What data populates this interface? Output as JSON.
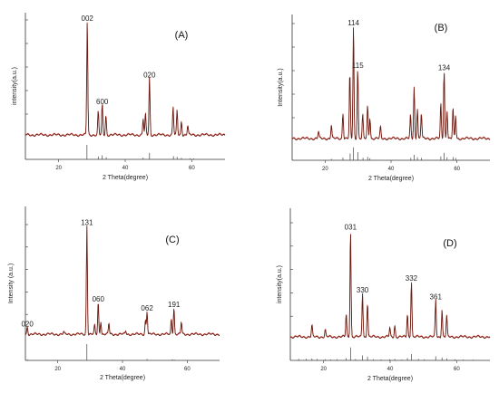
{
  "colors": {
    "observed": "#6b1a10",
    "calculated": "#e0392b",
    "reference": "#444444",
    "axis": "#333333"
  },
  "chart_data": [
    {
      "type": "line",
      "panel_label": "(A)",
      "xlabel": "2 Theta(degree)",
      "ylabel": "intensity(a.u.)",
      "xlim": [
        10,
        70
      ],
      "xticks": [
        20,
        40,
        60
      ],
      "ylim": [
        0,
        100
      ],
      "peaks": [
        {
          "x": 28.6,
          "y": 97,
          "label": "002"
        },
        {
          "x": 31.9,
          "y": 20
        },
        {
          "x": 33.1,
          "y": 26,
          "label": "600"
        },
        {
          "x": 34.2,
          "y": 17
        },
        {
          "x": 45.4,
          "y": 14
        },
        {
          "x": 46.1,
          "y": 18
        },
        {
          "x": 47.3,
          "y": 49,
          "label": "020"
        },
        {
          "x": 54.4,
          "y": 24
        },
        {
          "x": 55.6,
          "y": 21
        },
        {
          "x": 56.9,
          "y": 12
        },
        {
          "x": 58.8,
          "y": 8
        }
      ],
      "reference": [
        {
          "x": 28.5,
          "h": 100
        },
        {
          "x": 31.9,
          "h": 20
        },
        {
          "x": 33.1,
          "h": 28
        },
        {
          "x": 34.3,
          "h": 15
        },
        {
          "x": 45.4,
          "h": 12
        },
        {
          "x": 47.3,
          "h": 45
        },
        {
          "x": 54.5,
          "h": 22
        },
        {
          "x": 55.6,
          "h": 18
        },
        {
          "x": 56.9,
          "h": 10
        },
        {
          "x": 59.5,
          "h": 8
        },
        {
          "x": 60.6,
          "h": 6
        }
      ]
    },
    {
      "type": "line",
      "panel_label": "(B)",
      "xlabel": "2 Theta(degree)",
      "ylabel": "Intensity(a.u.)",
      "xlim": [
        10,
        70
      ],
      "xticks": [
        20,
        40,
        60
      ],
      "ylim": [
        0,
        100
      ],
      "peaks": [
        {
          "x": 18.0,
          "y": 6
        },
        {
          "x": 21.9,
          "y": 12
        },
        {
          "x": 25.4,
          "y": 22
        },
        {
          "x": 27.5,
          "y": 56
        },
        {
          "x": 28.6,
          "y": 96,
          "label": "114"
        },
        {
          "x": 29.9,
          "y": 60,
          "label": "115"
        },
        {
          "x": 31.4,
          "y": 20
        },
        {
          "x": 32.9,
          "y": 28
        },
        {
          "x": 33.6,
          "y": 18
        },
        {
          "x": 36.8,
          "y": 10
        },
        {
          "x": 45.9,
          "y": 20
        },
        {
          "x": 47.0,
          "y": 44
        },
        {
          "x": 48.0,
          "y": 26
        },
        {
          "x": 49.2,
          "y": 22
        },
        {
          "x": 55.1,
          "y": 30
        },
        {
          "x": 56.1,
          "y": 58,
          "label": "134"
        },
        {
          "x": 57.0,
          "y": 24
        },
        {
          "x": 58.8,
          "y": 26
        },
        {
          "x": 59.6,
          "y": 20
        }
      ],
      "reference": [
        {
          "x": 21.9,
          "h": 10
        },
        {
          "x": 25.4,
          "h": 20
        },
        {
          "x": 27.6,
          "h": 50
        },
        {
          "x": 28.6,
          "h": 95
        },
        {
          "x": 29.9,
          "h": 60
        },
        {
          "x": 31.5,
          "h": 18
        },
        {
          "x": 32.9,
          "h": 25
        },
        {
          "x": 33.6,
          "h": 15
        },
        {
          "x": 46.0,
          "h": 18
        },
        {
          "x": 47.0,
          "h": 40
        },
        {
          "x": 48.0,
          "h": 22
        },
        {
          "x": 49.2,
          "h": 18
        },
        {
          "x": 55.1,
          "h": 28
        },
        {
          "x": 56.1,
          "h": 55
        },
        {
          "x": 57.0,
          "h": 22
        },
        {
          "x": 58.8,
          "h": 24
        },
        {
          "x": 59.6,
          "h": 18
        }
      ]
    },
    {
      "type": "line",
      "panel_label": "(C)",
      "xlabel": "2 Theta(degree)",
      "ylabel": "Intensity (a.u.)",
      "xlim": [
        10,
        70
      ],
      "xticks": [
        20,
        40,
        60
      ],
      "ylim": [
        0,
        100
      ],
      "peaks": [
        {
          "x": 10.6,
          "y": 7,
          "label": "020"
        },
        {
          "x": 21.8,
          "y": 2
        },
        {
          "x": 29.0,
          "y": 97,
          "label": "131"
        },
        {
          "x": 31.4,
          "y": 8
        },
        {
          "x": 32.5,
          "y": 29,
          "label": "060"
        },
        {
          "x": 33.3,
          "y": 12
        },
        {
          "x": 35.8,
          "y": 10
        },
        {
          "x": 41.0,
          "y": 3
        },
        {
          "x": 47.1,
          "y": 13
        },
        {
          "x": 47.6,
          "y": 21,
          "label": "062"
        },
        {
          "x": 55.1,
          "y": 14
        },
        {
          "x": 55.9,
          "y": 24,
          "label": "191"
        },
        {
          "x": 58.2,
          "y": 11
        }
      ],
      "reference": [
        {
          "x": 10.6,
          "h": 6
        },
        {
          "x": 29.0,
          "h": 100
        },
        {
          "x": 47.6,
          "h": 8
        },
        {
          "x": 55.4,
          "h": 6
        },
        {
          "x": 56.0,
          "h": 5
        }
      ]
    },
    {
      "type": "line",
      "panel_label": "(D)",
      "xlabel": "2 Theta(degree)",
      "ylabel": "intensity(a.u.)",
      "xlim": [
        10,
        70
      ],
      "xticks": [
        20,
        40,
        60
      ],
      "ylim": [
        0,
        100
      ],
      "peaks": [
        {
          "x": 16.5,
          "y": 10
        },
        {
          "x": 20.5,
          "y": 6
        },
        {
          "x": 26.8,
          "y": 20
        },
        {
          "x": 28.1,
          "y": 92,
          "label": "031"
        },
        {
          "x": 31.7,
          "y": 38,
          "label": "330"
        },
        {
          "x": 33.2,
          "y": 30
        },
        {
          "x": 39.9,
          "y": 8
        },
        {
          "x": 41.4,
          "y": 10
        },
        {
          "x": 45.2,
          "y": 20
        },
        {
          "x": 46.4,
          "y": 48,
          "label": "332"
        },
        {
          "x": 53.7,
          "y": 32,
          "label": "361"
        },
        {
          "x": 55.6,
          "y": 24
        },
        {
          "x": 57.0,
          "y": 18
        }
      ],
      "reference": [
        {
          "x": 12.5,
          "h": 10
        },
        {
          "x": 14.8,
          "h": 12
        },
        {
          "x": 16.5,
          "h": 14
        },
        {
          "x": 18.1,
          "h": 10
        },
        {
          "x": 20.5,
          "h": 8
        },
        {
          "x": 22.1,
          "h": 6
        },
        {
          "x": 24.0,
          "h": 8
        },
        {
          "x": 26.8,
          "h": 16
        },
        {
          "x": 28.1,
          "h": 90
        },
        {
          "x": 29.6,
          "h": 10
        },
        {
          "x": 31.7,
          "h": 34
        },
        {
          "x": 33.2,
          "h": 26
        },
        {
          "x": 35.0,
          "h": 8
        },
        {
          "x": 37.3,
          "h": 6
        },
        {
          "x": 39.9,
          "h": 8
        },
        {
          "x": 41.4,
          "h": 10
        },
        {
          "x": 43.5,
          "h": 6
        },
        {
          "x": 45.2,
          "h": 16
        },
        {
          "x": 46.4,
          "h": 44
        },
        {
          "x": 48.5,
          "h": 10
        },
        {
          "x": 50.3,
          "h": 8
        },
        {
          "x": 53.7,
          "h": 28
        },
        {
          "x": 55.6,
          "h": 20
        },
        {
          "x": 57.0,
          "h": 14
        },
        {
          "x": 59.5,
          "h": 8
        },
        {
          "x": 62.0,
          "h": 6
        },
        {
          "x": 65.0,
          "h": 5
        }
      ]
    }
  ]
}
